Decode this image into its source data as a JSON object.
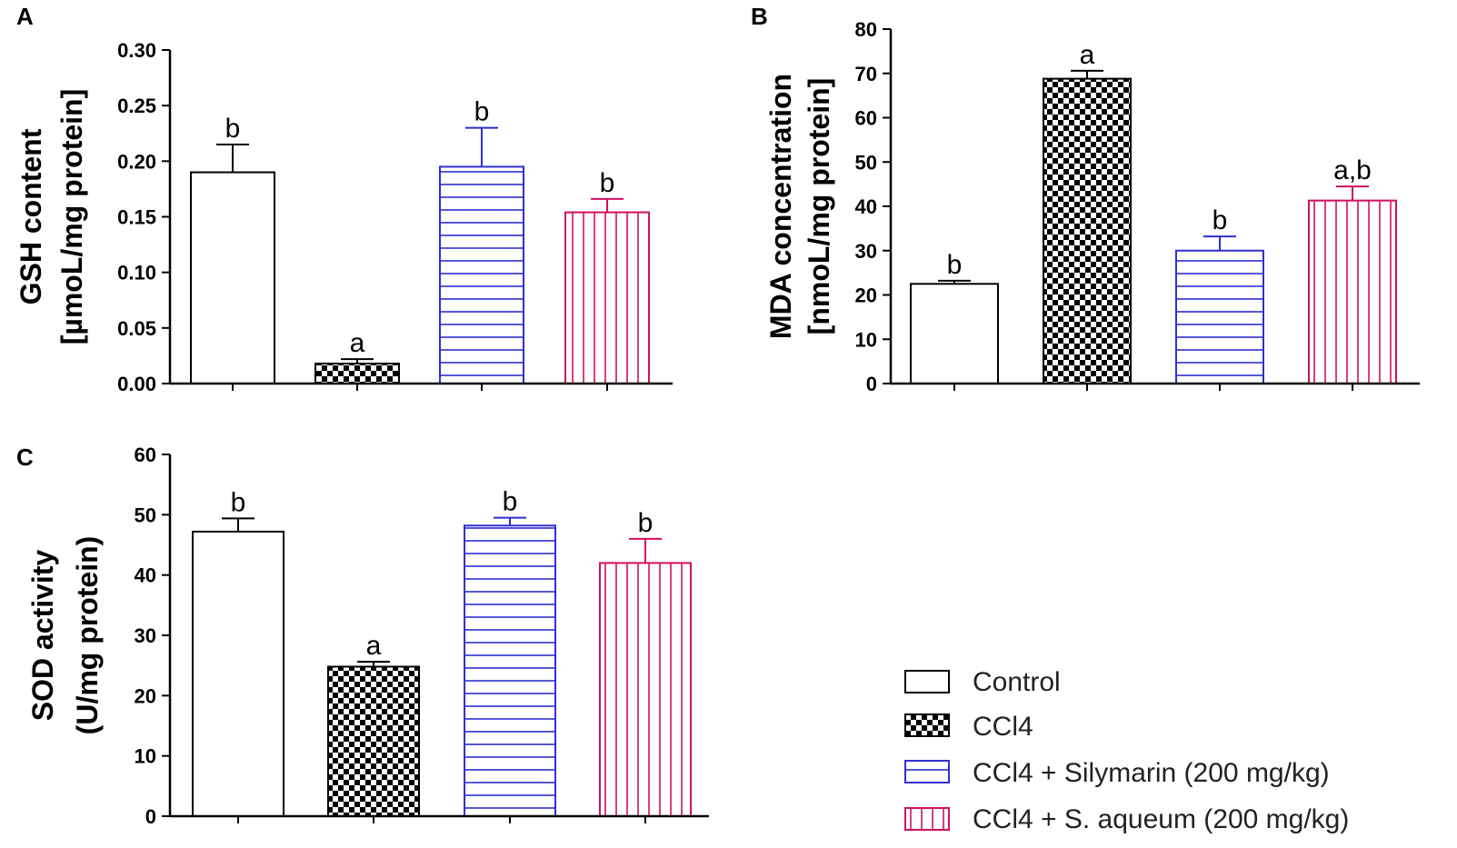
{
  "colors": {
    "control": "#000000",
    "ccl4": "#000000",
    "silymarin": "#2f2fd0",
    "aqueum": "#d01060"
  },
  "legend": {
    "items": [
      {
        "key": "control",
        "label": "Control"
      },
      {
        "key": "ccl4",
        "label": "CCl4"
      },
      {
        "key": "silymarin",
        "label": "CCl4 + Silymarin (200 mg/kg)"
      },
      {
        "key": "aqueum",
        "label": "CCl4 + S. aqueum (200 mg/kg)"
      }
    ]
  },
  "chart_data": [
    {
      "panel": "A",
      "type": "bar",
      "title": "",
      "ylabel_line1": "GSH content",
      "ylabel_line2": "[µmoL/mg protein]",
      "xlabel": "",
      "ylim": [
        0,
        0.3
      ],
      "yticks": [
        "0.00",
        "0.05",
        "0.10",
        "0.15",
        "0.20",
        "0.25",
        "0.30"
      ],
      "categories": [
        "Control",
        "CCl4",
        "CCl4 + Silymarin (200 mg/kg)",
        "CCl4 + S. aqueum (200 mg/kg)"
      ],
      "values": [
        0.19,
        0.018,
        0.195,
        0.154
      ],
      "errors": [
        0.025,
        0.004,
        0.035,
        0.012
      ],
      "labels": [
        "b",
        "a",
        "b",
        "b"
      ]
    },
    {
      "panel": "B",
      "type": "bar",
      "title": "",
      "ylabel_line1": "MDA concentration",
      "ylabel_line2": "[nmoL/mg protein]",
      "xlabel": "",
      "ylim": [
        0,
        80
      ],
      "yticks": [
        "0",
        "10",
        "20",
        "30",
        "40",
        "50",
        "60",
        "70",
        "80"
      ],
      "categories": [
        "Control",
        "CCl4",
        "CCl4 + Silymarin (200 mg/kg)",
        "CCl4 + S. aqueum (200 mg/kg)"
      ],
      "values": [
        22.5,
        68.8,
        30,
        41.3
      ],
      "errors": [
        0.7,
        1.8,
        3.2,
        3.2
      ],
      "labels": [
        "b",
        "a",
        "b",
        "a,b"
      ]
    },
    {
      "panel": "C",
      "type": "bar",
      "title": "",
      "ylabel_line1": "SOD activity",
      "ylabel_line2": "(U/mg protein)",
      "xlabel": "",
      "ylim": [
        0,
        60
      ],
      "yticks": [
        "0",
        "10",
        "20",
        "30",
        "40",
        "50",
        "60"
      ],
      "categories": [
        "Control",
        "CCl4",
        "CCl4 + Silymarin (200 mg/kg)",
        "CCl4 + S. aqueum (200 mg/kg)"
      ],
      "values": [
        47.2,
        24.8,
        48.2,
        42
      ],
      "errors": [
        2.2,
        0.8,
        1.3,
        4
      ],
      "labels": [
        "b",
        "a",
        "b",
        "b"
      ]
    }
  ]
}
